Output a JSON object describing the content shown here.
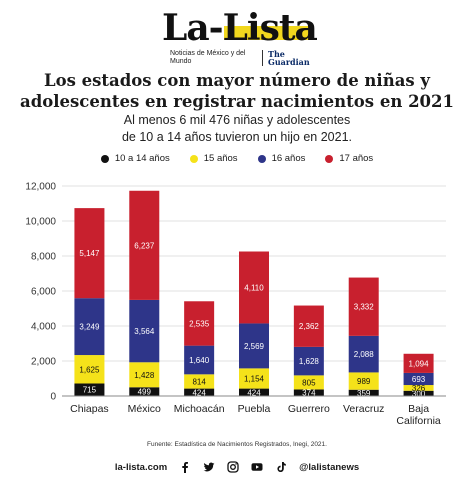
{
  "brand": {
    "logo": "La-Lista",
    "tagline": "Noticias de México y del Mundo",
    "partner": "The Guardian"
  },
  "title": "Los estados con mayor número de niñas y adolescentes en registrar nacimientos en 2021",
  "subtitle_line1": "Al menos 6 mil 476 niñas y adolescentes",
  "subtitle_line2": "de 10 a 14 años tuvieron un hijo en 2021.",
  "source": "Funente: Estadística de Nacimientos Registrados, Inegi, 2021.",
  "footer": {
    "website": "la-lista.com",
    "handle": "@lalistanews",
    "icons": [
      "facebook-icon",
      "twitter-icon",
      "instagram-icon",
      "youtube-icon",
      "tiktok-icon"
    ]
  },
  "chart_data": {
    "type": "bar",
    "stacked": true,
    "categories": [
      "Chiapas",
      "México",
      "Michoacán",
      "Puebla",
      "Guerrero",
      "Veracruz",
      "Baja California"
    ],
    "series": [
      {
        "name": "10 a 14 años",
        "color": "#111111",
        "label_color": "#ffffff",
        "values": [
          715,
          499,
          424,
          424,
          374,
          359,
          300
        ]
      },
      {
        "name": "15 años",
        "color": "#f5e21a",
        "label_color": "#111111",
        "values": [
          1625,
          1428,
          814,
          1154,
          805,
          989,
          326
        ]
      },
      {
        "name": "16 años",
        "color": "#2e3589",
        "label_color": "#ffffff",
        "values": [
          3249,
          3564,
          1640,
          2569,
          1628,
          2088,
          693
        ]
      },
      {
        "name": "17 años",
        "color": "#c8202e",
        "label_color": "#ffffff",
        "values": [
          5147,
          6237,
          2535,
          4110,
          2362,
          3332,
          1094
        ]
      }
    ],
    "data_labels": [
      [
        "715",
        "499",
        "424",
        "424",
        "374",
        "359",
        "300"
      ],
      [
        "1,625",
        "1,428",
        "814",
        "1,154",
        "805",
        "989",
        "326"
      ],
      [
        "3,249",
        "3,564",
        "1,640",
        "2,569",
        "1,628",
        "2,088",
        "693"
      ],
      [
        "5,147",
        "6,237",
        "2,535",
        "4,110",
        "2,362",
        "3,332",
        "1,094"
      ]
    ],
    "category_lines": [
      [
        "Chiapas"
      ],
      [
        "México"
      ],
      [
        "Michoacán"
      ],
      [
        "Puebla"
      ],
      [
        "Guerrero"
      ],
      [
        "Veracruz"
      ],
      [
        "Baja",
        "California"
      ]
    ],
    "ylim": [
      0,
      12000
    ],
    "yticks": [
      0,
      2000,
      4000,
      6000,
      8000,
      10000,
      12000
    ],
    "ytick_labels": [
      "0",
      "2,000",
      "4,000",
      "6,000",
      "8,000",
      "10,000",
      "12,000"
    ],
    "grid": true,
    "legend_position": "top"
  }
}
